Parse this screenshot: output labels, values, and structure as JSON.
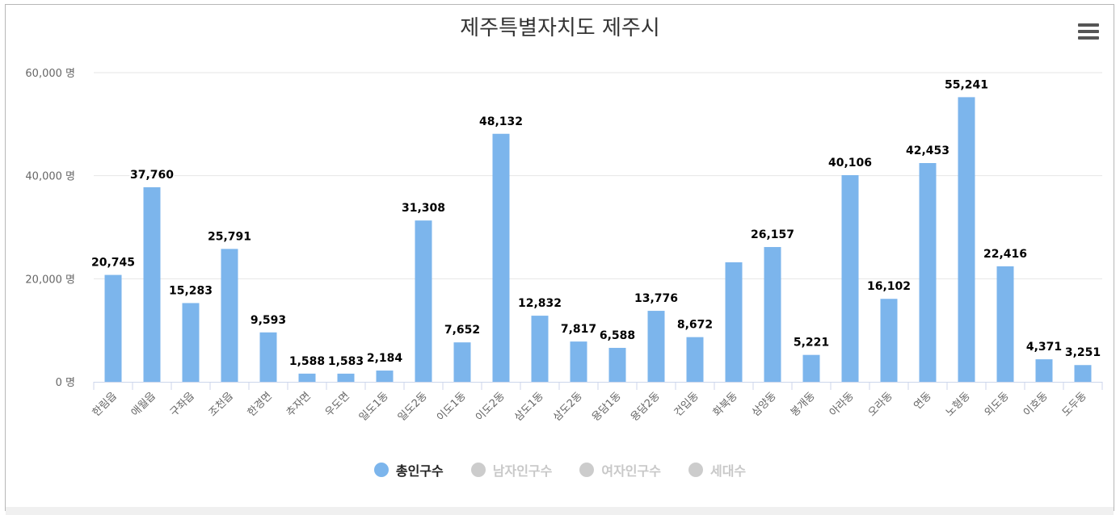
{
  "chart_data": {
    "type": "bar",
    "title": "제주특별자치도 제주시",
    "categories": [
      "한림읍",
      "애월읍",
      "구좌읍",
      "조천읍",
      "한경면",
      "추자면",
      "우도면",
      "일도1동",
      "일도2동",
      "이도1동",
      "이도2동",
      "삼도1동",
      "삼도2동",
      "용담1동",
      "용담2동",
      "건입동",
      "화북동",
      "삼양동",
      "봉개동",
      "아라동",
      "오라동",
      "연동",
      "노형동",
      "외도동",
      "이호동",
      "도두동"
    ],
    "series": [
      {
        "name": "총인구수",
        "color": "#7cb5ec",
        "values": [
          20745,
          37760,
          15283,
          25791,
          9593,
          1588,
          1583,
          2184,
          31308,
          7652,
          48132,
          12832,
          7817,
          6588,
          13776,
          8672,
          23200,
          26157,
          5221,
          40106,
          16102,
          42453,
          55241,
          22416,
          4371,
          3251
        ],
        "labels": [
          "20,745",
          "37,760",
          "15,283",
          "25,791",
          "9,593",
          "1,588",
          "1,583",
          "2,184",
          "31,308",
          "7,652",
          "48,132",
          "12,832",
          "7,817",
          "6,588",
          "13,776",
          "8,672",
          "",
          "26,157",
          "5,221",
          "40,106",
          "16,102",
          "42,453",
          "55,241",
          "22,416",
          "4,371",
          "3,251"
        ]
      }
    ],
    "ylim": [
      0,
      60000
    ],
    "yticks": [
      0,
      20000,
      40000,
      60000
    ],
    "ytick_labels": [
      "0 명",
      "20,000 명",
      "40,000 명",
      "60,000 명"
    ],
    "grid": true,
    "legend_position": "bottom-center"
  },
  "legend": [
    {
      "label": "총인구수",
      "color": "#7cb5ec",
      "active": true
    },
    {
      "label": "남자인구수",
      "color": "#cccccc",
      "active": false
    },
    {
      "label": "여자인구수",
      "color": "#cccccc",
      "active": false
    },
    {
      "label": "세대수",
      "color": "#cccccc",
      "active": false
    }
  ],
  "icons": {
    "menu": "hamburger-menu-icon"
  }
}
